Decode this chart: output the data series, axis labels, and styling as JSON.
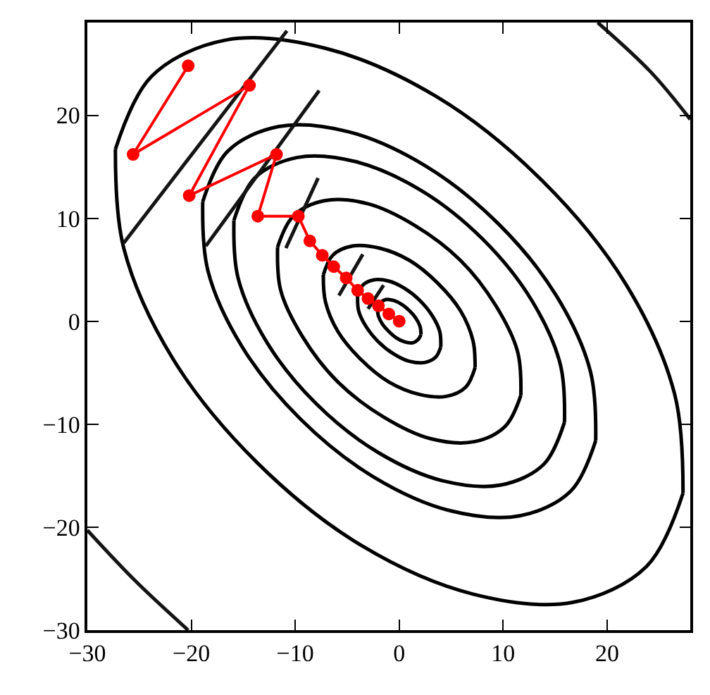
{
  "chart_data": {
    "type": "line",
    "xlim": [
      -30,
      28
    ],
    "ylim": [
      -30,
      29
    ],
    "xticks": [
      {
        "value": -30,
        "label": "−30"
      },
      {
        "value": -20,
        "label": "−20"
      },
      {
        "value": -10,
        "label": "−10"
      },
      0,
      10,
      20
    ],
    "yticks": [
      {
        "value": -30,
        "label": "−30"
      },
      {
        "value": -20,
        "label": "−20"
      },
      {
        "value": -10,
        "label": "−10"
      },
      0,
      10,
      20
    ],
    "line_style": "solid",
    "series": [
      {
        "color": "#000000",
        "marker": "none",
        "x": [
          -27.3,
          -23.8,
          -16.7,
          -7.1,
          3.6,
          13.7,
          21.8,
          26.5,
          27.3,
          null,
          27.3,
          23.8,
          16.7,
          7.1,
          -3.6,
          -13.7,
          -21.8,
          -26.5,
          -27.3
        ],
        "values": [
          16.7,
          23.8,
          27.3,
          26.5,
          21.8,
          13.7,
          3.6,
          -7.1,
          -16.7,
          null,
          -16.7,
          -23.8,
          -27.3,
          -26.5,
          -21.8,
          -13.7,
          -3.6,
          7.1,
          16.7
        ]
      },
      {
        "color": "#000000",
        "marker": "none",
        "x": [
          -18.9,
          -16.5,
          -11.6,
          -4.9,
          2.5,
          9.5,
          15.1,
          18.4,
          18.9,
          null,
          18.9,
          16.5,
          11.6,
          4.9,
          -2.5,
          -9.5,
          -15.1,
          -18.4,
          -18.9
        ],
        "values": [
          11.6,
          16.5,
          18.9,
          18.4,
          15.1,
          9.5,
          2.5,
          -4.9,
          -11.6,
          null,
          -11.6,
          -16.5,
          -18.9,
          -18.4,
          -15.1,
          -9.5,
          -2.5,
          4.9,
          11.6
        ]
      },
      {
        "color": "#000000",
        "marker": "none",
        "x": [
          -15.9,
          -13.9,
          -9.8,
          -4.2,
          2.1,
          8.0,
          12.7,
          15.5,
          15.9,
          null,
          15.9,
          13.9,
          9.8,
          4.2,
          -2.1,
          -8.0,
          -12.7,
          -15.5,
          -15.9
        ],
        "values": [
          9.8,
          13.9,
          15.9,
          15.5,
          12.7,
          8.0,
          2.1,
          -4.2,
          -9.8,
          null,
          -9.8,
          -13.9,
          -15.9,
          -15.5,
          -12.7,
          -8.0,
          -2.1,
          4.2,
          9.8
        ]
      },
      {
        "color": "#000000",
        "marker": "none",
        "x": [
          -11.7,
          -10.2,
          -7.2,
          -3.0,
          1.5,
          5.9,
          9.3,
          11.4,
          11.7,
          null,
          11.7,
          10.2,
          7.2,
          3.0,
          -1.5,
          -5.9,
          -9.3,
          -11.4,
          -11.7
        ],
        "values": [
          7.2,
          10.2,
          11.7,
          11.4,
          9.3,
          5.9,
          1.5,
          -3.0,
          -7.2,
          null,
          -7.2,
          -10.2,
          -11.7,
          -11.4,
          -9.3,
          -5.9,
          -1.5,
          3.0,
          7.2
        ]
      },
      {
        "color": "#000000",
        "marker": "none",
        "x": [
          -7.3,
          -6.4,
          -4.5,
          -1.9,
          1.0,
          3.7,
          5.9,
          7.1,
          7.3,
          null,
          7.3,
          6.4,
          4.5,
          1.9,
          -1.0,
          -3.7,
          -5.9,
          -7.1,
          -7.3
        ],
        "values": [
          4.5,
          6.4,
          7.3,
          7.1,
          5.9,
          3.7,
          1.0,
          -1.9,
          -4.5,
          null,
          -4.5,
          -6.4,
          -7.3,
          -7.1,
          -5.9,
          -3.7,
          -1.0,
          1.9,
          4.5
        ]
      },
      {
        "color": "#000000",
        "marker": "none",
        "x": [
          -4.0,
          -3.5,
          -2.5,
          -1.0,
          0.5,
          2.0,
          3.2,
          3.9,
          4.0,
          null,
          4.0,
          3.5,
          2.5,
          1.0,
          -0.5,
          -2.0,
          -3.2,
          -3.9,
          -4.0
        ],
        "values": [
          2.5,
          3.5,
          4.0,
          3.9,
          3.2,
          2.0,
          0.5,
          -1.0,
          -2.5,
          null,
          -2.5,
          -3.5,
          -4.0,
          -3.9,
          -3.2,
          -2.0,
          -0.5,
          1.0,
          2.5
        ]
      },
      {
        "color": "#000000",
        "marker": "none",
        "x": [
          -2.1,
          -1.8,
          -1.3,
          -0.5,
          0.3,
          1.0,
          1.6,
          2.0,
          2.1,
          null,
          2.1,
          1.8,
          1.3,
          0.5,
          -0.3,
          -1.0,
          -1.6,
          -2.0,
          -2.1
        ],
        "values": [
          1.3,
          1.8,
          2.1,
          2.0,
          1.6,
          1.0,
          0.3,
          -0.5,
          -1.3,
          null,
          -1.3,
          -1.8,
          -2.1,
          -2.0,
          -1.6,
          -1.0,
          -0.3,
          0.5,
          1.3
        ]
      },
      {
        "color": "#141414",
        "marker": "none",
        "x": [
          -30,
          -25.3,
          -20.3
        ],
        "values": [
          -20.3,
          -25.3,
          -30
        ]
      },
      {
        "color": "#141414",
        "marker": "none",
        "x": [
          19.1,
          24.2,
          28
        ],
        "values": [
          29,
          24.2,
          19.6
        ]
      },
      {
        "color": "#141414",
        "marker": "none",
        "x": [
          -10.8,
          -26.5,
          null,
          -7.7,
          -18.6,
          null,
          -7.8,
          -10.9,
          null,
          -3.5,
          -5.8,
          null,
          -1.5,
          -3.0
        ],
        "values": [
          28.2,
          7.6,
          null,
          22.4,
          7.3,
          null,
          13.9,
          7.1,
          null,
          6.5,
          2.5,
          null,
          3.5,
          1.2
        ]
      },
      {
        "color": "#ff0000",
        "marker": "circle",
        "x": [
          -20.3,
          -25.6,
          -14.4,
          -20.2,
          -11.8,
          -13.6,
          -9.7,
          -8.6,
          -7.4,
          -6.3,
          -5.1,
          -4.0,
          -3.0,
          -2.0,
          -1.0,
          0.0
        ],
        "values": [
          24.8,
          16.2,
          22.9,
          12.2,
          16.2,
          10.2,
          10.2,
          7.8,
          6.4,
          5.3,
          4.2,
          3.0,
          2.2,
          1.5,
          0.7,
          0.0
        ]
      }
    ]
  }
}
